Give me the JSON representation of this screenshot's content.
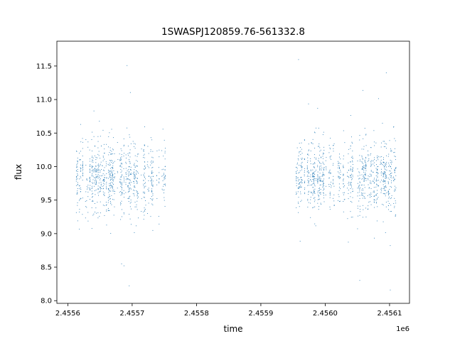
{
  "chart_data": {
    "type": "scatter",
    "title": "1SWASPJ120859.76-561332.8",
    "xlabel": "time",
    "ylabel": "flux",
    "x_offset_label": "1e6",
    "x_tick_labels": [
      "2.4556",
      "2.4557",
      "2.4558",
      "2.4559",
      "2.4560",
      "2.4561"
    ],
    "x_ticks": [
      2455600,
      2455700,
      2455800,
      2455900,
      2456000,
      2456100
    ],
    "y_tick_labels": [
      "8.0",
      "8.5",
      "9.0",
      "9.5",
      "10.0",
      "10.5",
      "11.0",
      "11.5"
    ],
    "y_ticks": [
      8.0,
      8.5,
      9.0,
      9.5,
      10.0,
      10.5,
      11.0,
      11.5
    ],
    "xlim": [
      2455583,
      2456131
    ],
    "ylim": [
      7.96,
      11.87
    ],
    "grid": false,
    "legend": "none",
    "marker_color": "#1f77b4",
    "series": [
      {
        "segments": [
          {
            "x_start": 2455613,
            "x_end": 2455754,
            "median": 9.85,
            "typical_range": [
              9.1,
              10.6
            ],
            "extremes": [
              8.22,
              11.65
            ]
          },
          {
            "x_start": 2455953,
            "x_end": 2456109,
            "median": 9.85,
            "typical_range": [
              9.1,
              10.6
            ],
            "extremes": [
              8.15,
              11.72
            ]
          }
        ]
      }
    ]
  }
}
